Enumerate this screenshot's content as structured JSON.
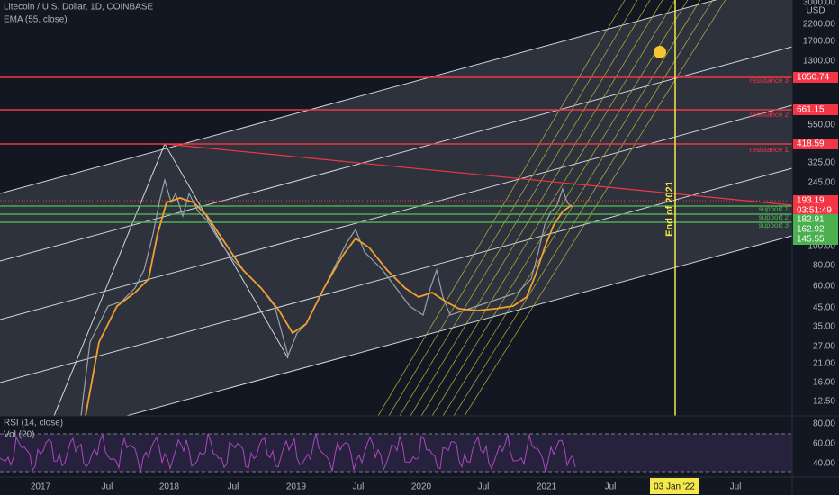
{
  "header": {
    "title": "Litecoin / U.S. Dollar, 1D, COINBASE",
    "indicator": "EMA (55, close)"
  },
  "price_axis": {
    "unit": "USD",
    "labels": [
      "3000.00",
      "2200.00",
      "1700.00",
      "1300.00",
      "550.00",
      "325.00",
      "245.00",
      "100.00",
      "80.00",
      "60.00",
      "45.00",
      "35.00",
      "27.00",
      "21.00",
      "16.00",
      "12.50"
    ]
  },
  "price_tags": [
    {
      "label": "1050.74"
    },
    {
      "label": "661.15"
    },
    {
      "label": "418.59"
    },
    {
      "label": "193.19"
    },
    {
      "label": "03:51:49"
    },
    {
      "label": "182.91"
    },
    {
      "label": "162.92"
    },
    {
      "label": "145.55"
    }
  ],
  "annotations": [
    "resistance 3",
    "resistance 2",
    "resistance 1",
    "support 1",
    "support 2",
    "support 3"
  ],
  "vertical_note": "End of 2021",
  "rsi_panel": {
    "title": "RSI (14, close)",
    "volume": "Vol (20)",
    "labels": [
      "80.00",
      "60.00",
      "40.00"
    ]
  },
  "time_axis": {
    "labels": [
      "2017",
      "Jul",
      "2018",
      "Jul",
      "2019",
      "Jul",
      "2020",
      "Jul",
      "2021",
      "Jul",
      "Jul"
    ],
    "cursor": "03 Jan '22"
  }
}
